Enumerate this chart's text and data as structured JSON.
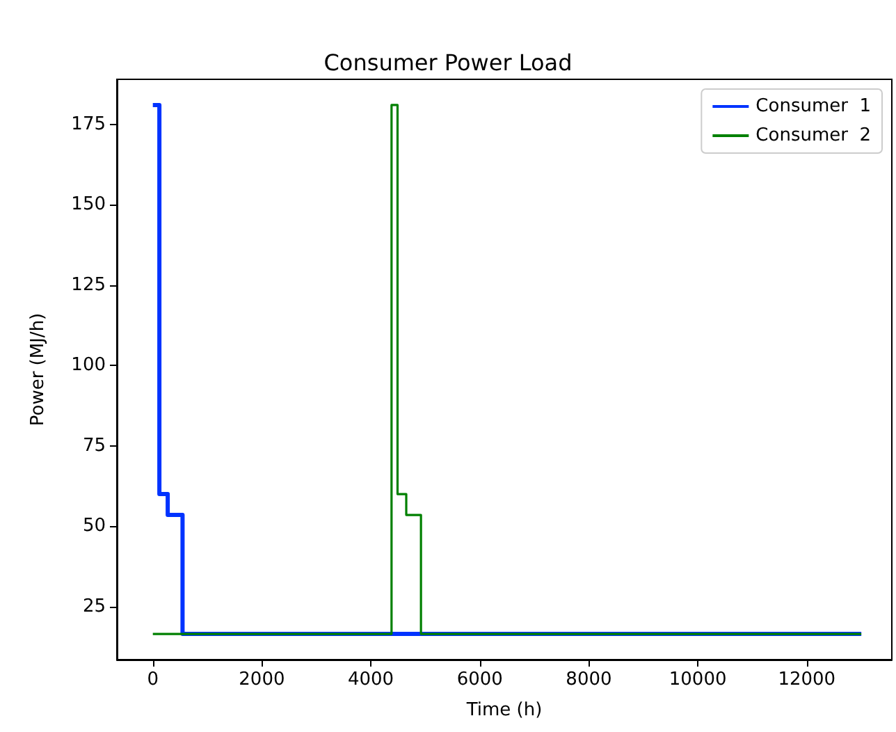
{
  "chart_data": {
    "type": "step",
    "title": "Consumer Power Load",
    "xlabel": "Time (h)",
    "ylabel": "Power (MJ/h)",
    "series": [
      {
        "name": "Consumer  1",
        "color": "#0033ff",
        "x": [
          0,
          120,
          273,
          545,
          13000
        ],
        "values": [
          181,
          60,
          53.5,
          16.5,
          16.5
        ]
      },
      {
        "name": "Consumer  2",
        "color": "#008000",
        "x": [
          0,
          4380,
          4490,
          4650,
          4920,
          13000
        ],
        "values": [
          16.5,
          181,
          60,
          53.5,
          16.5,
          16.5
        ]
      }
    ],
    "xlim": [
      -660,
      13560
    ],
    "xticks": [
      0,
      2000,
      4000,
      6000,
      8000,
      10000,
      12000
    ],
    "ylim": [
      8.5,
      189
    ],
    "yticks": [
      25,
      50,
      75,
      100,
      125,
      150,
      175
    ],
    "grid": false,
    "legend": "top right",
    "marker": "none",
    "line_style": "solid"
  }
}
